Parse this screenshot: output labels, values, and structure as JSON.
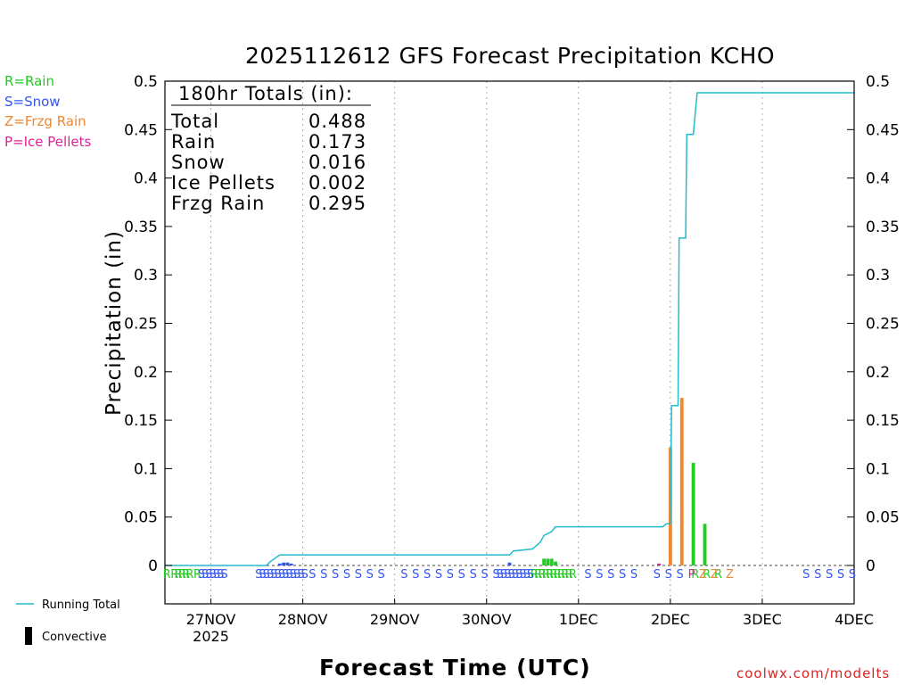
{
  "chart_data": {
    "type": "bar",
    "title": "2025112612 GFS Forecast Precipitation KCHO",
    "xlabel": "Forecast Time (UTC)",
    "ylabel": "Precipitation (in)",
    "ylim": [
      0,
      0.5
    ],
    "yticks": [
      "0",
      "0.05",
      "0.1",
      "0.15",
      "0.2",
      "0.25",
      "0.3",
      "0.35",
      "0.4",
      "0.45",
      "0.5"
    ],
    "x_unit": "hours since 2025-11-26 12Z",
    "xlim": [
      0,
      180
    ],
    "xticks": [
      {
        "hour": 12,
        "label": "27NOV",
        "sublabel": "2025"
      },
      {
        "hour": 36,
        "label": "28NOV",
        "sublabel": ""
      },
      {
        "hour": 60,
        "label": "29NOV",
        "sublabel": ""
      },
      {
        "hour": 84,
        "label": "30NOV",
        "sublabel": ""
      },
      {
        "hour": 108,
        "label": "1DEC",
        "sublabel": ""
      },
      {
        "hour": 132,
        "label": "2DEC",
        "sublabel": ""
      },
      {
        "hour": 156,
        "label": "3DEC",
        "sublabel": ""
      },
      {
        "hour": 180,
        "label": "4DEC",
        "sublabel": ""
      }
    ],
    "legend": [
      {
        "text": "R=Rain",
        "color": "#22cc22"
      },
      {
        "text": "S=Snow",
        "color": "#3355ee"
      },
      {
        "text": "Z=Frzg Rain",
        "color": "#ee8833"
      },
      {
        "text": "P=Ice Pellets",
        "color": "#dd2299"
      }
    ],
    "totals": {
      "header": "180hr Totals (in):",
      "rows": [
        {
          "label": "Total",
          "value": "0.488"
        },
        {
          "label": "Rain",
          "value": "0.173"
        },
        {
          "label": "Snow",
          "value": "0.016"
        },
        {
          "label": "Ice Pellets",
          "value": "0.002"
        },
        {
          "label": "Frzg Rain",
          "value": "0.295"
        }
      ]
    },
    "bars": [
      {
        "hour": 30,
        "value": 0.002,
        "type": "S"
      },
      {
        "hour": 31,
        "value": 0.003,
        "type": "S"
      },
      {
        "hour": 32,
        "value": 0.003,
        "type": "S"
      },
      {
        "hour": 33,
        "value": 0.002,
        "type": "S"
      },
      {
        "hour": 90,
        "value": 0.003,
        "type": "S"
      },
      {
        "hour": 99,
        "value": 0.007,
        "type": "R"
      },
      {
        "hour": 100,
        "value": 0.007,
        "type": "R"
      },
      {
        "hour": 101,
        "value": 0.007,
        "type": "R"
      },
      {
        "hour": 102,
        "value": 0.004,
        "type": "R"
      },
      {
        "hour": 129,
        "value": 0.002,
        "type": "P"
      },
      {
        "hour": 132,
        "value": 0.122,
        "type": "Z"
      },
      {
        "hour": 135,
        "value": 0.173,
        "type": "Z"
      },
      {
        "hour": 138,
        "value": 0.106,
        "type": "R"
      },
      {
        "hour": 141,
        "value": 0.043,
        "type": "R"
      }
    ],
    "running_total": [
      [
        0,
        0
      ],
      [
        26.5,
        0
      ],
      [
        27.5,
        0.004
      ],
      [
        30,
        0.011
      ],
      [
        36,
        0.011
      ],
      [
        90,
        0.011
      ],
      [
        91,
        0.015
      ],
      [
        96,
        0.017
      ],
      [
        98,
        0.024
      ],
      [
        99,
        0.031
      ],
      [
        101,
        0.035
      ],
      [
        102,
        0.04
      ],
      [
        105,
        0.04
      ],
      [
        130,
        0.04
      ],
      [
        131,
        0.043
      ],
      [
        132,
        0.043
      ],
      [
        132.3,
        0.165
      ],
      [
        134,
        0.165
      ],
      [
        134.3,
        0.338
      ],
      [
        136,
        0.338
      ],
      [
        136.3,
        0.445
      ],
      [
        138,
        0.445
      ],
      [
        139,
        0.488
      ],
      [
        180,
        0.488
      ]
    ],
    "ptype_strip": {
      "R": [
        0.5,
        2.5,
        3.5,
        4.5,
        5.5,
        6.5,
        8.5,
        96.5,
        97.5,
        98.5,
        99.5,
        100.5,
        101.5,
        102.5,
        103.5,
        104.5,
        105.5,
        106.5,
        138.5,
        141.5,
        144.5
      ],
      "S": [
        9.5,
        10.5,
        11.5,
        12.5,
        13.5,
        14.5,
        15.5,
        24.5,
        25.5,
        26.5,
        27.5,
        28.5,
        29.5,
        30.5,
        31.5,
        32.5,
        33.5,
        34.5,
        35.5,
        36.5,
        38.5,
        41.5,
        44.5,
        47.5,
        50.5,
        53.5,
        56.5,
        62.5,
        65.5,
        68.5,
        71.5,
        74.5,
        77.5,
        80.5,
        83.5,
        86.5,
        87.5,
        88.5,
        89.5,
        90.5,
        91.5,
        92.5,
        93.5,
        94.5,
        95.5,
        110.5,
        113.5,
        116.5,
        119.5,
        122.5,
        128.5,
        131.5,
        134.5,
        167.5,
        170.5,
        173.5,
        176.5,
        179.5
      ],
      "Z": [
        140.5,
        143.5,
        147.5
      ],
      "P": [
        137.5
      ]
    },
    "series_legend": [
      {
        "label": "Running Total",
        "kind": "line",
        "color": "#22bbcc"
      },
      {
        "label": "Convective",
        "kind": "bar",
        "color": "#000000"
      }
    ]
  },
  "credit": "coolwx.com/modelts"
}
